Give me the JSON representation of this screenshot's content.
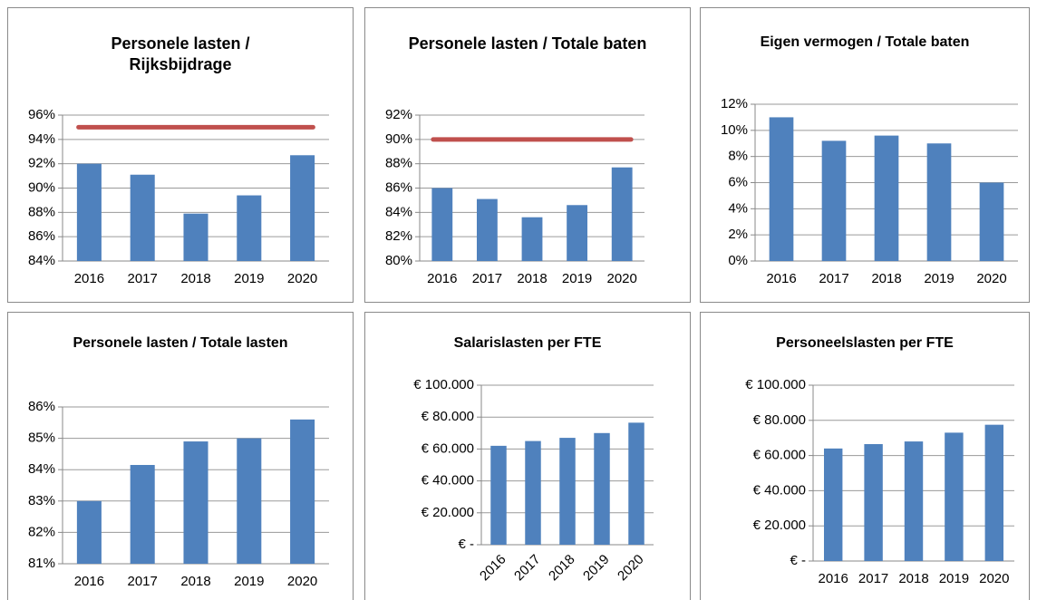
{
  "chart_data": [
    {
      "type": "bar",
      "title": "Personele lasten / Rijksbijdrage",
      "categories": [
        "2016",
        "2017",
        "2018",
        "2019",
        "2020"
      ],
      "values": [
        92.0,
        91.1,
        87.9,
        89.4,
        92.7
      ],
      "color": "#4f81bd",
      "reference_line": {
        "value": 95,
        "color": "#c0504d"
      },
      "ylim": [
        84,
        96
      ],
      "yticks": [
        {
          "value": 84,
          "label": "84%"
        },
        {
          "value": 86,
          "label": "86%"
        },
        {
          "value": 88,
          "label": "88%"
        },
        {
          "value": 90,
          "label": "90%"
        },
        {
          "value": 92,
          "label": "92%"
        },
        {
          "value": 94,
          "label": "94%"
        },
        {
          "value": 96,
          "label": "96%"
        }
      ],
      "grid": true
    },
    {
      "type": "bar",
      "title": "Personele lasten / Totale baten",
      "categories": [
        "2016",
        "2017",
        "2018",
        "2019",
        "2020"
      ],
      "values": [
        86.0,
        85.1,
        83.6,
        84.6,
        87.7
      ],
      "color": "#4f81bd",
      "reference_line": {
        "value": 90,
        "color": "#c0504d"
      },
      "ylim": [
        80,
        92
      ],
      "yticks": [
        {
          "value": 80,
          "label": "80%"
        },
        {
          "value": 82,
          "label": "82%"
        },
        {
          "value": 84,
          "label": "84%"
        },
        {
          "value": 86,
          "label": "86%"
        },
        {
          "value": 88,
          "label": "88%"
        },
        {
          "value": 90,
          "label": "90%"
        },
        {
          "value": 92,
          "label": "92%"
        }
      ],
      "grid": true
    },
    {
      "type": "bar",
      "title": "Eigen vermogen / Totale baten",
      "categories": [
        "2016",
        "2017",
        "2018",
        "2019",
        "2020"
      ],
      "values": [
        11.0,
        9.2,
        9.6,
        9.0,
        6.0
      ],
      "color": "#4f81bd",
      "ylim": [
        0,
        12
      ],
      "yticks": [
        {
          "value": 0,
          "label": "0%"
        },
        {
          "value": 2,
          "label": "2%"
        },
        {
          "value": 4,
          "label": "4%"
        },
        {
          "value": 6,
          "label": "6%"
        },
        {
          "value": 8,
          "label": "8%"
        },
        {
          "value": 10,
          "label": "10%"
        },
        {
          "value": 12,
          "label": "12%"
        }
      ],
      "grid": true
    },
    {
      "type": "bar",
      "title": "Personele lasten / Totale lasten",
      "categories": [
        "2016",
        "2017",
        "2018",
        "2019",
        "2020"
      ],
      "values": [
        83.0,
        84.15,
        84.9,
        85.0,
        85.6
      ],
      "color": "#4f81bd",
      "ylim": [
        81,
        86
      ],
      "yticks": [
        {
          "value": 81,
          "label": "81%"
        },
        {
          "value": 82,
          "label": "82%"
        },
        {
          "value": 83,
          "label": "83%"
        },
        {
          "value": 84,
          "label": "84%"
        },
        {
          "value": 85,
          "label": "85%"
        },
        {
          "value": 86,
          "label": "86%"
        }
      ],
      "grid": true
    },
    {
      "type": "bar",
      "title": "Salarislasten per FTE",
      "categories": [
        "2016",
        "2017",
        "2018",
        "2019",
        "2020"
      ],
      "values": [
        62000,
        65000,
        67000,
        70000,
        76500
      ],
      "color": "#4f81bd",
      "ylim": [
        0,
        100000
      ],
      "yticks": [
        {
          "value": 0,
          "label": "€ -"
        },
        {
          "value": 20000,
          "label": "€ 20.000"
        },
        {
          "value": 40000,
          "label": "€ 40.000"
        },
        {
          "value": 60000,
          "label": "€ 60.000"
        },
        {
          "value": 80000,
          "label": "€ 80.000"
        },
        {
          "value": 100000,
          "label": "€ 100.000"
        }
      ],
      "grid": true
    },
    {
      "type": "bar",
      "title": "Personeelslasten per FTE",
      "categories": [
        "2016",
        "2017",
        "2018",
        "2019",
        "2020"
      ],
      "values": [
        64000,
        66500,
        68000,
        73000,
        77500
      ],
      "color": "#4f81bd",
      "ylim": [
        0,
        100000
      ],
      "yticks": [
        {
          "value": 0,
          "label": "€ -"
        },
        {
          "value": 20000,
          "label": "€ 20.000"
        },
        {
          "value": 40000,
          "label": "€ 40.000"
        },
        {
          "value": 60000,
          "label": "€ 60.000"
        },
        {
          "value": 80000,
          "label": "€ 80.000"
        },
        {
          "value": 100000,
          "label": "€ 100.000"
        }
      ],
      "grid": true
    }
  ]
}
